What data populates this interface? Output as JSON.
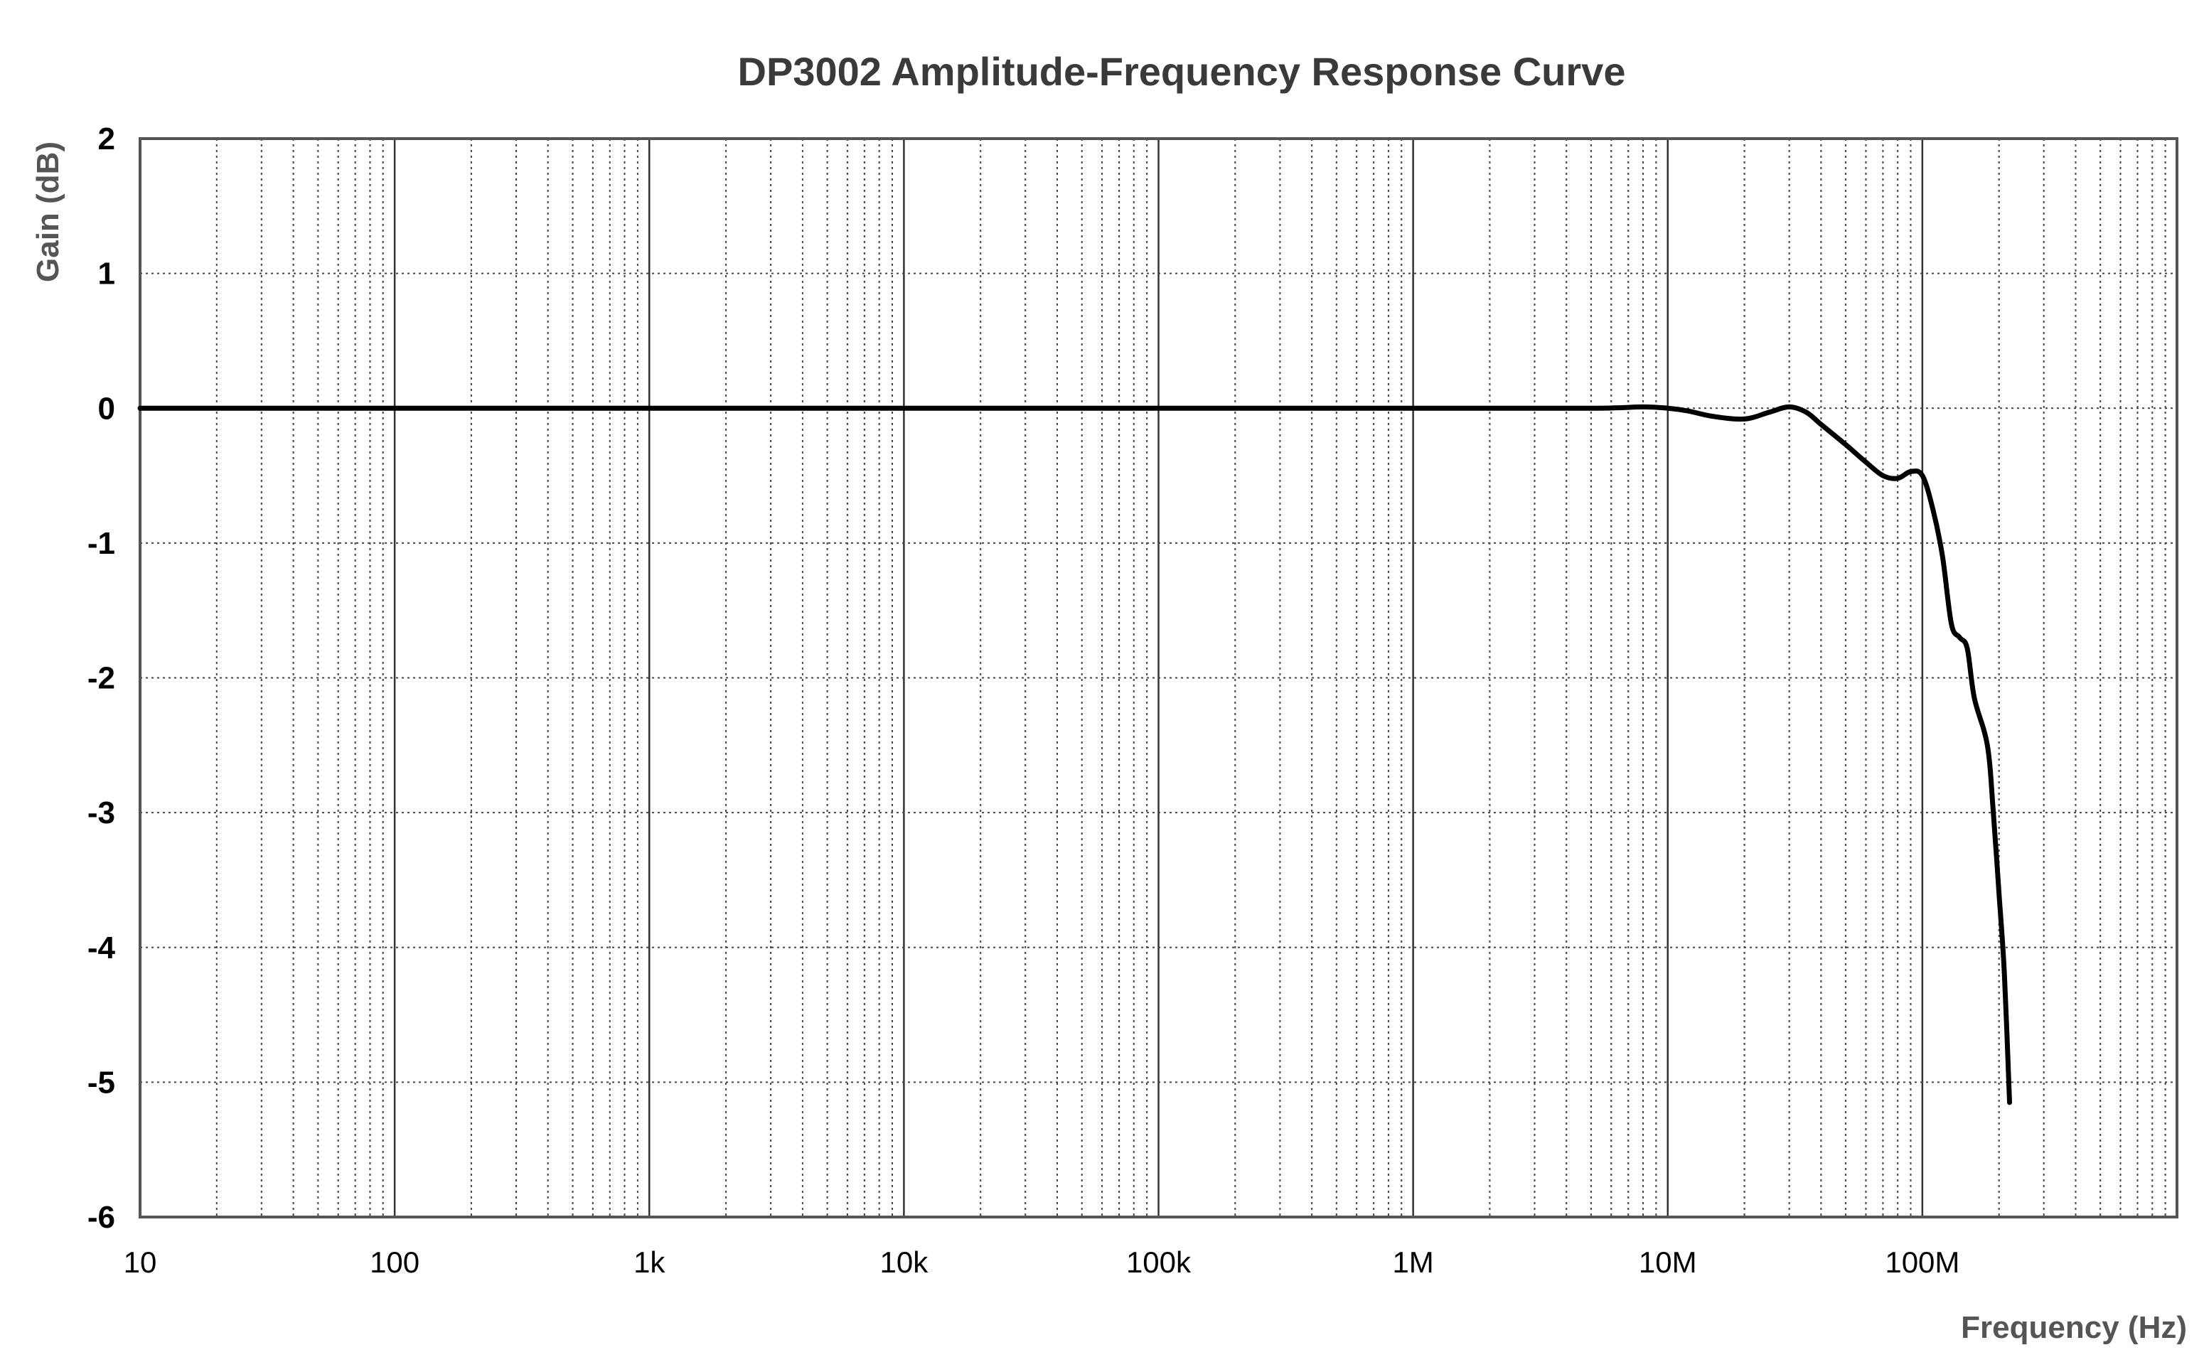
{
  "chart_data": {
    "type": "line",
    "title": "DP3002 Amplitude-Frequency Response Curve",
    "xlabel": "Frequency (Hz)",
    "ylabel": "Gain (dB)",
    "x_scale": "log",
    "xlim": [
      10,
      1000000000
    ],
    "ylim": [
      -6,
      2
    ],
    "x_ticks": [
      {
        "value": 10,
        "label": "10"
      },
      {
        "value": 100,
        "label": "100"
      },
      {
        "value": 1000,
        "label": "1k"
      },
      {
        "value": 10000,
        "label": "10k"
      },
      {
        "value": 100000,
        "label": "100k"
      },
      {
        "value": 1000000,
        "label": "1M"
      },
      {
        "value": 10000000,
        "label": "10M"
      },
      {
        "value": 100000000,
        "label": "100M"
      }
    ],
    "y_ticks": [
      {
        "value": 2,
        "label": "2"
      },
      {
        "value": 1,
        "label": "1"
      },
      {
        "value": 0,
        "label": "0"
      },
      {
        "value": -1,
        "label": "-1"
      },
      {
        "value": -2,
        "label": "-2"
      },
      {
        "value": -3,
        "label": "-3"
      },
      {
        "value": -4,
        "label": "-4"
      },
      {
        "value": -5,
        "label": "-5"
      },
      {
        "value": -6,
        "label": "-6"
      }
    ],
    "grid": "dotted, major and minor (log) lines",
    "legend": "none",
    "line_color": "#000000",
    "series": [
      {
        "points": [
          [
            10,
            0
          ],
          [
            100,
            0
          ],
          [
            1000,
            0
          ],
          [
            10000,
            0
          ],
          [
            100000,
            0
          ],
          [
            1000000,
            0
          ],
          [
            5000000,
            0
          ],
          [
            8000000,
            0.01
          ],
          [
            10000000,
            0
          ],
          [
            12000000,
            -0.02
          ],
          [
            15000000,
            -0.06
          ],
          [
            20000000,
            -0.08
          ],
          [
            25000000,
            -0.03
          ],
          [
            30000000,
            0.01
          ],
          [
            35000000,
            -0.03
          ],
          [
            40000000,
            -0.12
          ],
          [
            50000000,
            -0.27
          ],
          [
            60000000,
            -0.4
          ],
          [
            70000000,
            -0.5
          ],
          [
            80000000,
            -0.52
          ],
          [
            90000000,
            -0.47
          ],
          [
            100000000,
            -0.5
          ],
          [
            110000000,
            -0.75
          ],
          [
            120000000,
            -1.1
          ],
          [
            130000000,
            -1.6
          ],
          [
            140000000,
            -1.7
          ],
          [
            150000000,
            -1.78
          ],
          [
            160000000,
            -2.15
          ],
          [
            180000000,
            -2.5
          ],
          [
            190000000,
            -3.0
          ],
          [
            200000000,
            -3.6
          ],
          [
            210000000,
            -4.2
          ],
          [
            220000000,
            -5.15
          ]
        ]
      }
    ]
  }
}
